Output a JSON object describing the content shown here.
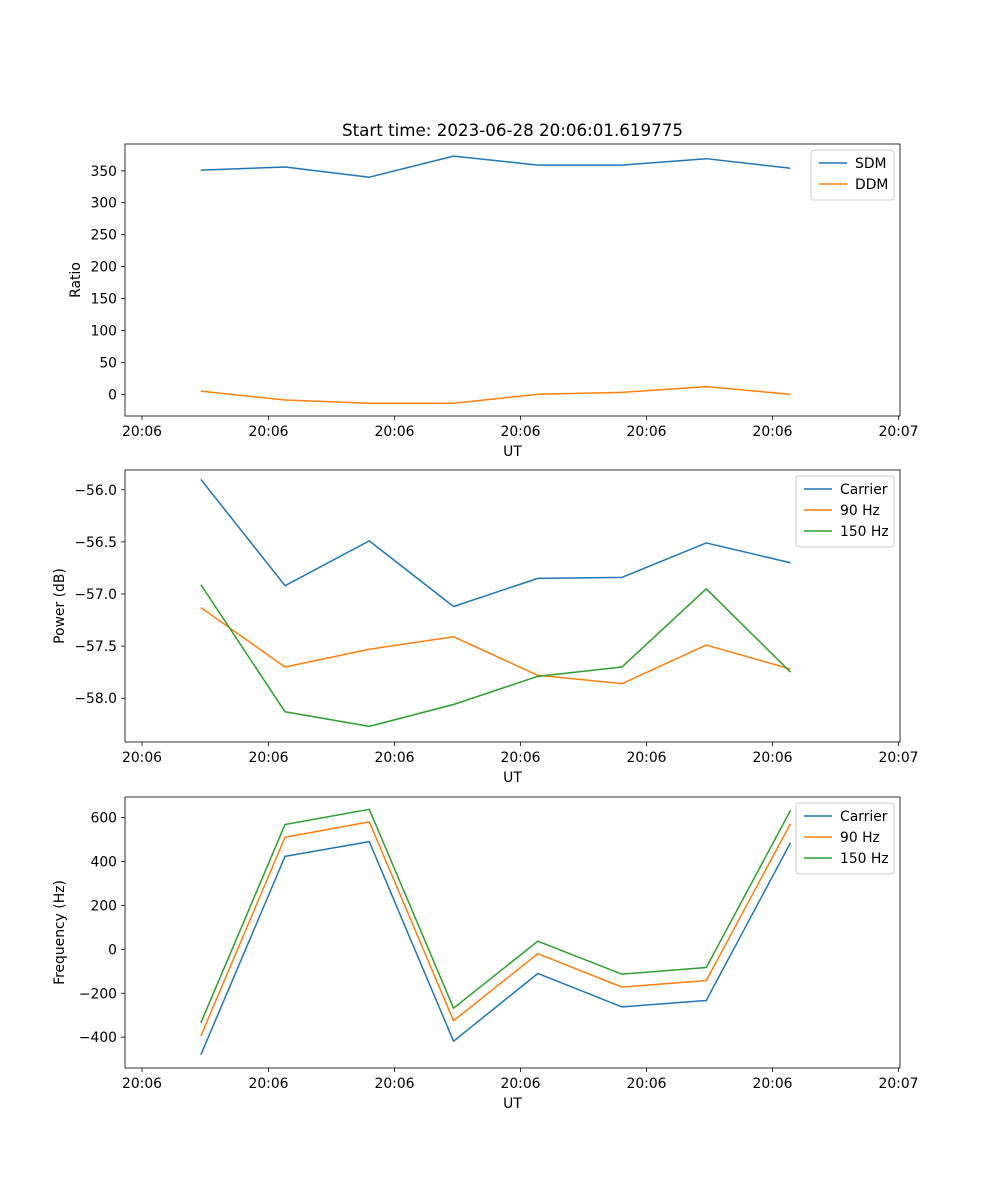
{
  "figure_title": "Start time: 2023-06-28 20:06:01.619775",
  "colors": {
    "c0": "#1f77b4",
    "c1": "#ff7f0e",
    "c2": "#2ca02c"
  },
  "chart_data": [
    {
      "type": "line",
      "xlabel": "UT",
      "ylabel": "Ratio",
      "x_tick_labels": [
        "20:06",
        "20:06",
        "20:06",
        "20:06",
        "20:06",
        "20:06",
        "20:07"
      ],
      "y_ticks": [
        0,
        50,
        100,
        150,
        200,
        250,
        300,
        350
      ],
      "ylim": [
        -34,
        392
      ],
      "x": [
        1,
        2,
        3,
        4,
        5,
        6,
        7,
        8
      ],
      "xlim": [
        0.1,
        9.3
      ],
      "legend_position": "upper right",
      "series": [
        {
          "name": "SDM",
          "color": "#1f77b4",
          "values": [
            351,
            356,
            340,
            373,
            359,
            359,
            369,
            354
          ]
        },
        {
          "name": "DDM",
          "color": "#ff7f0e",
          "values": [
            5,
            -9,
            -14,
            -14,
            0,
            3,
            12,
            0
          ]
        }
      ]
    },
    {
      "type": "line",
      "xlabel": "UT",
      "ylabel": "Power (dB)",
      "x_tick_labels": [
        "20:06",
        "20:06",
        "20:06",
        "20:06",
        "20:06",
        "20:06",
        "20:07"
      ],
      "y_ticks": [
        -58.0,
        -57.5,
        -57.0,
        -56.5,
        -56.0
      ],
      "y_tick_labels": [
        "−58.0",
        "−57.5",
        "−57.0",
        "−56.5",
        "−56.0"
      ],
      "ylim": [
        -58.42,
        -55.81
      ],
      "x": [
        1,
        2,
        3,
        4,
        5,
        6,
        7,
        8
      ],
      "xlim": [
        0.1,
        9.3
      ],
      "legend_position": "upper right",
      "series": [
        {
          "name": "Carrier",
          "color": "#1f77b4",
          "values": [
            -55.9,
            -56.92,
            -56.49,
            -57.12,
            -56.85,
            -56.84,
            -56.51,
            -56.7
          ]
        },
        {
          "name": "90 Hz",
          "color": "#ff7f0e",
          "values": [
            -57.13,
            -57.7,
            -57.53,
            -57.41,
            -57.78,
            -57.86,
            -57.49,
            -57.72
          ]
        },
        {
          "name": "150 Hz",
          "color": "#2ca02c",
          "values": [
            -56.91,
            -58.13,
            -58.27,
            -58.06,
            -57.79,
            -57.7,
            -56.95,
            -57.75
          ]
        }
      ]
    },
    {
      "type": "line",
      "xlabel": "UT",
      "ylabel": "Frequency (Hz)",
      "x_tick_labels": [
        "20:06",
        "20:06",
        "20:06",
        "20:06",
        "20:06",
        "20:06",
        "20:07"
      ],
      "y_ticks": [
        -400,
        -200,
        0,
        200,
        400,
        600
      ],
      "y_tick_labels": [
        "−400",
        "−200",
        "0",
        "200",
        "400",
        "600"
      ],
      "ylim": [
        -540,
        693
      ],
      "x": [
        1,
        2,
        3,
        4,
        5,
        6,
        7,
        8
      ],
      "xlim": [
        0.1,
        9.3
      ],
      "legend_position": "upper right",
      "series": [
        {
          "name": "Carrier",
          "color": "#1f77b4",
          "values": [
            -480,
            423,
            490,
            -418,
            -110,
            -262,
            -233,
            485
          ]
        },
        {
          "name": "90 Hz",
          "color": "#ff7f0e",
          "values": [
            -395,
            510,
            580,
            -325,
            -20,
            -172,
            -142,
            572
          ]
        },
        {
          "name": "150 Hz",
          "color": "#2ca02c",
          "values": [
            -335,
            568,
            637,
            -268,
            37,
            -113,
            -83,
            632
          ]
        }
      ]
    }
  ]
}
